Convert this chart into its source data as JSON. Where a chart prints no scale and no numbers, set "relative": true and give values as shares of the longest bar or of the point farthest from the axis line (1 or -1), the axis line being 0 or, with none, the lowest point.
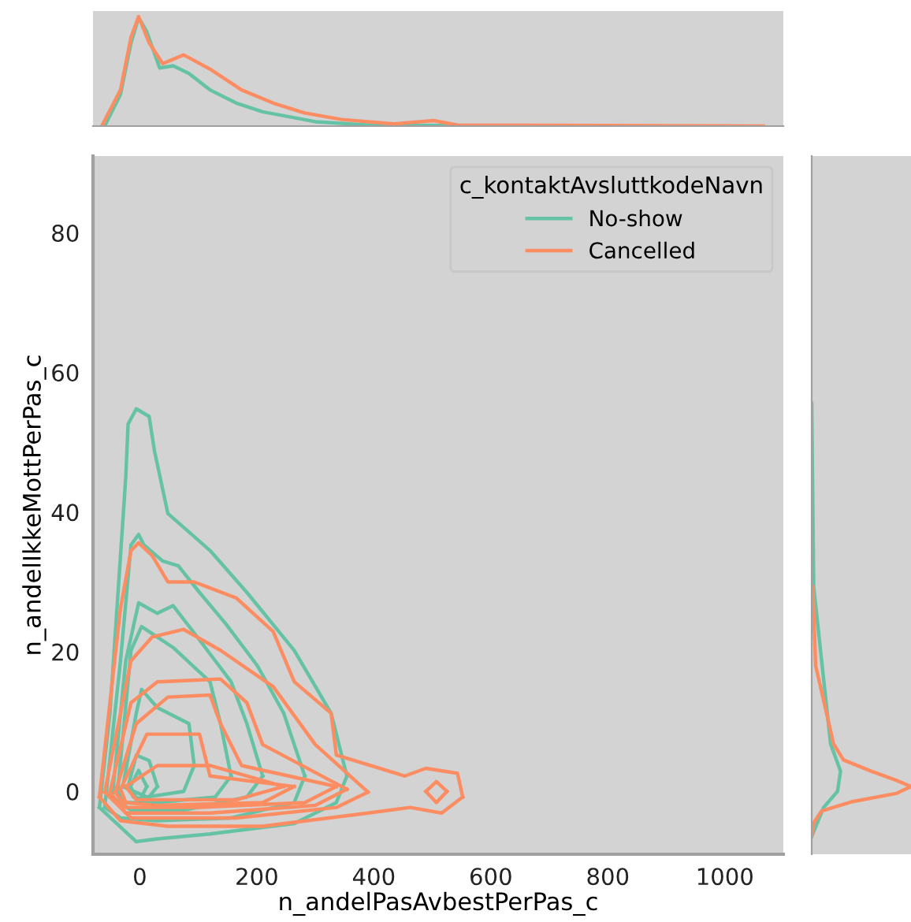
{
  "chart_data": [
    {
      "type": "line",
      "xlabel": "n_andelPasAvbestPerPas_c",
      "ylabel": "n_andelIkkeMottPerPas_c",
      "xlim": [
        -80,
        1100
      ],
      "ylim": [
        -9,
        91
      ],
      "xticks": [
        0,
        200,
        400,
        600,
        800,
        1000
      ],
      "yticks": [
        0,
        20,
        40,
        60,
        80
      ],
      "grid": false,
      "legend": "top right",
      "legend_title": "c_kontaktAvsluttkodeNavn",
      "series": [
        {
          "name": "No-show",
          "color": "#66c2a5",
          "x": [
            -69,
            -51,
            -24,
            -20,
            -6,
            16,
            25,
            48,
            120,
            183,
            264,
            327,
            354
          ],
          "values": [
            -2.3,
            11.2,
            45,
            52.6,
            54.8,
            53.7,
            48.8,
            39.8,
            34.5,
            28.5,
            20.2,
            11.2,
            2.2
          ]
        },
        {
          "color": "#66c2a5",
          "x": [
            -69,
            -6,
            30,
            120,
            264,
            336,
            354
          ],
          "values": [
            -2.3,
            -7.2,
            -6.8,
            -6.1,
            -4.6,
            -1.6,
            2.2
          ]
        },
        {
          "color": "#66c2a5",
          "x": [
            -60,
            -33,
            -15,
            -2,
            7,
            39,
            66,
            102,
            147,
            201,
            246,
            282
          ],
          "values": [
            -2.3,
            18.7,
            35.3,
            36.8,
            35.3,
            33,
            32.3,
            28.5,
            24,
            18,
            11.2,
            2.2
          ]
        },
        {
          "color": "#66c2a5",
          "x": [
            -60,
            -33,
            30,
            156,
            264,
            282
          ],
          "values": [
            -2.3,
            -3.8,
            -4.2,
            -3.8,
            -1.6,
            2.2
          ]
        },
        {
          "color": "#66c2a5",
          "x": [
            -47,
            -24,
            -2,
            30,
            57,
            102,
            156,
            183,
            210
          ],
          "values": [
            -0.8,
            18.7,
            27,
            25.5,
            26.6,
            21.7,
            15.7,
            9.7,
            2.2
          ]
        },
        {
          "color": "#66c2a5",
          "x": [
            -47,
            -15,
            75,
            183,
            210
          ],
          "values": [
            -0.8,
            -2.7,
            -2.7,
            -0.8,
            2.2
          ]
        },
        {
          "color": "#66c2a5",
          "x": [
            -38,
            -15,
            3,
            57,
            120,
            138,
            156
          ],
          "values": [
            -0.1,
            20.2,
            23.6,
            20.6,
            15.7,
            9.7,
            2.2
          ]
        },
        {
          "color": "#66c2a5",
          "x": [
            -38,
            -24,
            30,
            129,
            156
          ],
          "values": [
            -0.1,
            -1.6,
            -1.6,
            -0.8,
            2.2
          ]
        },
        {
          "color": "#66c2a5",
          "x": [
            -29,
            -6,
            3,
            30,
            84,
            93
          ],
          "values": [
            0.7,
            11.2,
            14.6,
            12,
            9.7,
            3.7
          ]
        },
        {
          "color": "#66c2a5",
          "x": [
            -29,
            12,
            75,
            93
          ],
          "values": [
            0.7,
            -0.8,
            0,
            3.7
          ]
        },
        {
          "color": "#66c2a5",
          "x": [
            -20,
            -6,
            16,
            30
          ],
          "values": [
            0.7,
            5.2,
            4.4,
            0.7
          ]
        },
        {
          "color": "#66c2a5",
          "x": [
            -20,
            -11,
            12,
            30
          ],
          "values": [
            0.7,
            -0.8,
            -1.2,
            0.7
          ]
        },
        {
          "color": "#66c2a5",
          "x": [
            -16,
            -2,
            12
          ],
          "values": [
            0.7,
            3,
            0.7
          ]
        },
        {
          "color": "#66c2a5",
          "x": [
            -16,
            -2,
            12
          ],
          "values": [
            0.7,
            -1.6,
            0.7
          ]
        },
        {
          "name": "Cancelled",
          "color": "#fc8d62",
          "x": [
            -69,
            -33,
            -15,
            -2,
            21,
            48,
            93,
            165,
            228,
            264,
            327,
            336,
            453,
            489,
            543,
            552
          ],
          "values": [
            -0.8,
            26.2,
            34.5,
            35.6,
            33.8,
            30,
            30,
            27.7,
            22.9,
            15.7,
            11.2,
            5.2,
            2.2,
            3.3,
            2.6,
            -0.8
          ]
        },
        {
          "color": "#fc8d62",
          "x": [
            -69,
            -33,
            48,
            210,
            390,
            462,
            516,
            552
          ],
          "values": [
            -0.8,
            -4.2,
            -5,
            -5,
            -3.1,
            -2.3,
            -3.1,
            -0.8
          ]
        },
        {
          "color": "#fc8d62",
          "x": [
            489,
            507,
            525
          ],
          "values": [
            0,
            1.4,
            0
          ]
        },
        {
          "color": "#fc8d62",
          "x": [
            489,
            507,
            525
          ],
          "values": [
            0,
            -1.6,
            0
          ]
        },
        {
          "color": "#fc8d62",
          "x": [
            -60,
            -15,
            21,
            75,
            138,
            228,
            300,
            390
          ],
          "values": [
            -0.1,
            18.7,
            22.1,
            23.2,
            20.2,
            15,
            6.7,
            -0.1
          ]
        },
        {
          "color": "#fc8d62",
          "x": [
            -60,
            -15,
            165,
            336,
            390
          ],
          "values": [
            -0.1,
            -3.8,
            -3.8,
            -2.3,
            -0.1
          ]
        },
        {
          "color": "#fc8d62",
          "x": [
            -51,
            -15,
            30,
            138,
            183,
            210,
            354
          ],
          "values": [
            -0.1,
            12.7,
            15.7,
            16.1,
            12.7,
            6.7,
            0.3
          ]
        },
        {
          "color": "#fc8d62",
          "x": [
            -51,
            -24,
            120,
            300,
            354
          ],
          "values": [
            -0.1,
            -3.1,
            -3.1,
            -2,
            0.3
          ]
        },
        {
          "color": "#fc8d62",
          "x": [
            -42,
            -6,
            48,
            120,
            138,
            174,
            336
          ],
          "values": [
            -0.1,
            9.7,
            13.5,
            13.8,
            9.7,
            3.7,
            0.7
          ]
        },
        {
          "color": "#fc8d62",
          "x": [
            -42,
            -24,
            102,
            282,
            336
          ],
          "values": [
            -0.1,
            -2.3,
            -2.3,
            -1.6,
            0.7
          ]
        },
        {
          "color": "#fc8d62",
          "x": [
            -33,
            12,
            102,
            120,
            264
          ],
          "values": [
            0.3,
            8.2,
            8.2,
            2.2,
            0.7
          ]
        },
        {
          "color": "#fc8d62",
          "x": [
            -33,
            -24,
            30,
            210,
            264
          ],
          "values": [
            0.3,
            -1.6,
            -2,
            -1.6,
            0.7
          ]
        },
        {
          "color": "#fc8d62",
          "x": [
            -24,
            30,
            120,
            246
          ],
          "values": [
            0.7,
            3.7,
            3.7,
            0.7
          ]
        },
        {
          "color": "#fc8d62",
          "x": [
            -24,
            -6,
            165,
            246
          ],
          "values": [
            0.7,
            -1.2,
            -1.2,
            0.7
          ]
        }
      ]
    },
    {
      "type": "line",
      "relative": true,
      "xlim": [
        -80,
        1100
      ],
      "series": [
        {
          "color": "#66c2a5",
          "x": [
            -60,
            -33,
            -15,
            -2,
            12,
            34,
            57,
            84,
            120,
            165,
            210,
            300,
            390,
            525,
            832
          ],
          "values": [
            0,
            0.29,
            0.76,
            0.99,
            0.86,
            0.53,
            0.55,
            0.48,
            0.33,
            0.21,
            0.13,
            0.04,
            0.01,
            0.005,
            0
          ]
        },
        {
          "color": "#fc8d62",
          "x": [
            -65,
            -33,
            -15,
            -2,
            16,
            39,
            75,
            120,
            174,
            228,
            282,
            345,
            435,
            502,
            543,
            796,
            1066
          ],
          "values": [
            0,
            0.33,
            0.81,
            1,
            0.76,
            0.57,
            0.65,
            0.52,
            0.33,
            0.21,
            0.12,
            0.06,
            0.02,
            0.05,
            0.01,
            0.005,
            0
          ]
        }
      ]
    },
    {
      "type": "line",
      "relative": true,
      "orientation": "horizontal",
      "ylim": [
        -9,
        91
      ],
      "series": [
        {
          "color": "#66c2a5",
          "x": [
            55.6,
            29.3,
            6.8,
            2.9,
            0,
            -2.3,
            -6.1
          ],
          "values": [
            0,
            0.02,
            0.19,
            0.29,
            0.26,
            0.12,
            0.01
          ]
        },
        {
          "color": "#fc8d62",
          "x": [
            29.3,
            18,
            6.8,
            4.5,
            2.9,
            1.6,
            0.7,
            -0.3,
            -1.5,
            -2.8,
            -4.5,
            -6.5
          ],
          "values": [
            0.01,
            0.04,
            0.22,
            0.32,
            0.6,
            0.85,
            1,
            0.85,
            0.4,
            0.1,
            0.02,
            0
          ]
        }
      ]
    }
  ]
}
